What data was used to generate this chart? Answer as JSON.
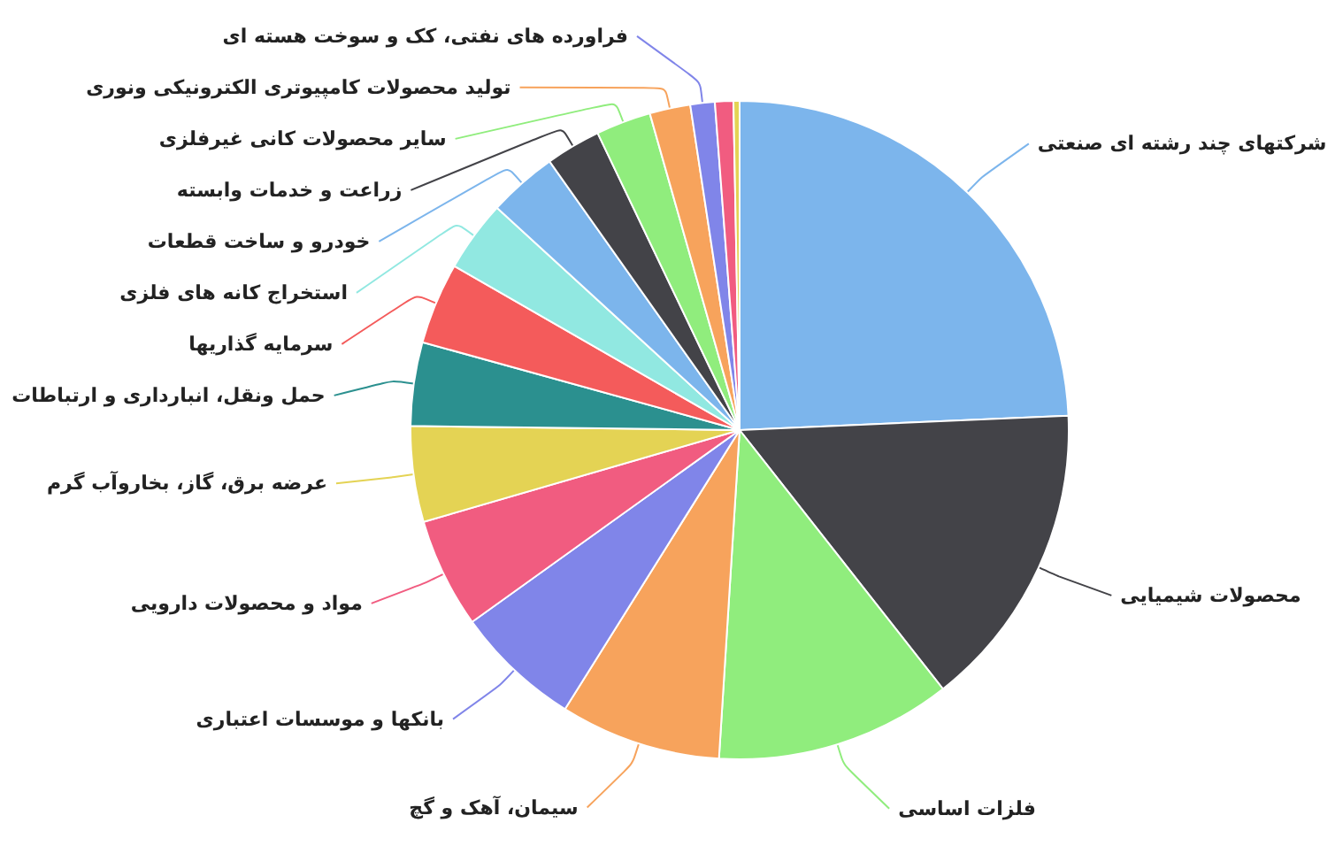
{
  "chart_data": {
    "type": "pie",
    "categories": [
      "شرکتهای چند رشته ای صنعتی",
      "محصولات شیمیایی",
      "فلزات اساسی",
      "سیمان، آهک و گچ",
      "بانکها و موسسات اعتباری",
      "مواد و محصولات دارویی",
      "عرضه برق، گاز، بخاروآب گرم",
      "حمل ونقل، انبارداری و ارتباطات",
      "سرمایه گذاریها",
      "استخراج کانه های فلزی",
      "خودرو و ساخت قطعات",
      "زراعت و خدمات وابسته",
      "سایر محصولات کانی غیرفلزی",
      "تولید محصولات کامپیوتری الکترونیکی ونوری",
      "فراورده های نفتی، کک و سوخت هسته ای",
      null,
      null
    ],
    "values": [
      24.3,
      15.1,
      11.6,
      7.9,
      6.2,
      5.4,
      4.7,
      4.1,
      4.0,
      3.5,
      3.4,
      2.7,
      2.7,
      2.0,
      1.2,
      0.9,
      0.3
    ],
    "colors": [
      "#7cb5ec",
      "#434348",
      "#90ed7d",
      "#f7a35c",
      "#8085e9",
      "#f15c80",
      "#e4d354",
      "#2b908f",
      "#f45b5b",
      "#91e8e1",
      "#7cb5ec",
      "#434348",
      "#90ed7d",
      "#f7a35c",
      "#8085e9",
      "#f15c80",
      "#e4d354"
    ]
  }
}
